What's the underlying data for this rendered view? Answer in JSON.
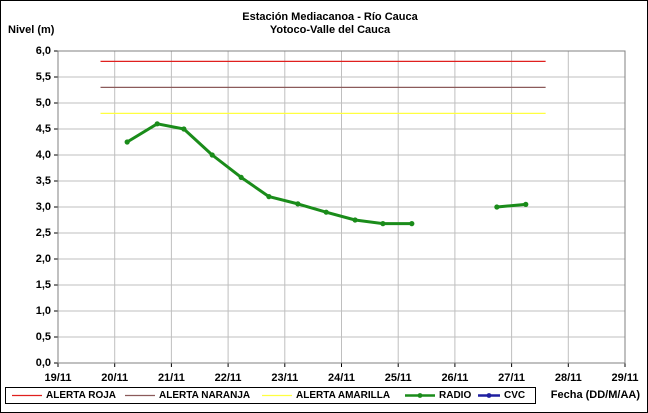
{
  "chart_data": {
    "type": "line",
    "title": "Estación Mediacanoa - Río Cauca",
    "subtitle": "Yotoco-Valle del Cauca",
    "y_label": "Nivel (m)",
    "x_label": "Fecha (DD/M/AA)",
    "xlim": [
      19,
      29
    ],
    "xticks": [
      {
        "value": 19,
        "label": "19/11"
      },
      {
        "value": 20,
        "label": "20/11"
      },
      {
        "value": 21,
        "label": "21/11"
      },
      {
        "value": 22,
        "label": "22/11"
      },
      {
        "value": 23,
        "label": "23/11"
      },
      {
        "value": 24,
        "label": "24/11"
      },
      {
        "value": 25,
        "label": "25/11"
      },
      {
        "value": 26,
        "label": "26/11"
      },
      {
        "value": 27,
        "label": "27/11"
      },
      {
        "value": 28,
        "label": "28/11"
      },
      {
        "value": 29,
        "label": "29/11"
      }
    ],
    "ylim": [
      0,
      6
    ],
    "yticks": [
      {
        "value": 0,
        "label": "0,0"
      },
      {
        "value": 0.5,
        "label": "0,5"
      },
      {
        "value": 1,
        "label": "1,0"
      },
      {
        "value": 1.5,
        "label": "1,5"
      },
      {
        "value": 2,
        "label": "2,0"
      },
      {
        "value": 2.5,
        "label": "2,5"
      },
      {
        "value": 3,
        "label": "3,0"
      },
      {
        "value": 3.5,
        "label": "3,5"
      },
      {
        "value": 4,
        "label": "4,0"
      },
      {
        "value": 4.5,
        "label": "4,5"
      },
      {
        "value": 5,
        "label": "5,0"
      },
      {
        "value": 5.5,
        "label": "5,5"
      },
      {
        "value": 6,
        "label": "6,0"
      }
    ],
    "grid": true,
    "legend": "bottom",
    "series": [
      {
        "name": "ALERTA ROJA",
        "color": "#e0201e",
        "x": [
          19.75,
          27.6
        ],
        "values": [
          5.8,
          5.8
        ]
      },
      {
        "name": "ALERTA NARANJA",
        "color": "#8b5a5a",
        "x": [
          19.75,
          27.6
        ],
        "values": [
          5.3,
          5.3
        ]
      },
      {
        "name": "ALERTA AMARILLA",
        "color": "#ffff40",
        "x": [
          19.75,
          27.6
        ],
        "values": [
          4.8,
          4.8
        ]
      },
      {
        "name": "RADIO",
        "color": "#1a8c1a",
        "markers": true,
        "x": [
          20.22,
          20.75,
          21.22,
          21.72,
          22.23,
          22.72,
          23.23,
          23.73,
          24.24,
          24.73,
          25.24,
          26.0,
          26.74,
          27.25
        ],
        "values": [
          4.25,
          4.6,
          4.5,
          4.0,
          3.57,
          3.2,
          3.06,
          2.9,
          2.75,
          2.68,
          2.68,
          null,
          3.0,
          3.05
        ]
      },
      {
        "name": "CVC",
        "color": "#1f1fa0",
        "markers": true,
        "x": [],
        "values": []
      }
    ]
  }
}
